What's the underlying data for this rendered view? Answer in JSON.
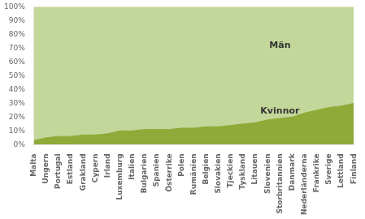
{
  "chart_data": {
    "type": "area",
    "stacked": true,
    "grid": false,
    "categories": [
      "Malta",
      "Ungern",
      "Portugal",
      "Estland",
      "Grakland",
      "Cypern",
      "Irland",
      "Luxemburg",
      "Italien",
      "Bulgarien",
      "Spanien",
      "Österrike",
      "Polen",
      "Rumänien",
      "Belgien",
      "Slovakien",
      "Tjeckien",
      "Tyskland",
      "Litauen",
      "Slovenien",
      "Storbritannien",
      "Danmark",
      "Nederländerna",
      "Frankrike",
      "Sverige",
      "Lettland",
      "Finland"
    ],
    "series": [
      {
        "name": "Kvinnor",
        "color": "#8faa38",
        "values": [
          3,
          5,
          6,
          6,
          7,
          7,
          8,
          10,
          10,
          11,
          11,
          11,
          12,
          12,
          13,
          13,
          14,
          15,
          16,
          18,
          19,
          20,
          23,
          25,
          27,
          28,
          30
        ]
      },
      {
        "name": "Män",
        "color": "#c4d79b",
        "values": [
          97,
          95,
          94,
          94,
          93,
          93,
          92,
          90,
          90,
          89,
          89,
          89,
          88,
          88,
          87,
          87,
          86,
          85,
          84,
          82,
          81,
          80,
          77,
          75,
          73,
          72,
          70
        ]
      }
    ],
    "ylim": [
      0,
      100
    ],
    "yticks": [
      {
        "value": 0,
        "label": "0%"
      },
      {
        "value": 10,
        "label": "10%"
      },
      {
        "value": 20,
        "label": "20%"
      },
      {
        "value": 30,
        "label": "30%"
      },
      {
        "value": 40,
        "label": "40%"
      },
      {
        "value": 50,
        "label": "50%"
      },
      {
        "value": 60,
        "label": "60%"
      },
      {
        "value": 70,
        "label": "70%"
      },
      {
        "value": 80,
        "label": "80%"
      },
      {
        "value": 90,
        "label": "90%"
      },
      {
        "value": 100,
        "label": "100%"
      }
    ],
    "annotations": [
      {
        "text": "Män",
        "x": "Storbritannien",
        "y": 72
      },
      {
        "text": "Kvinnor",
        "x": "Storbritannien",
        "y": 24
      }
    ]
  }
}
